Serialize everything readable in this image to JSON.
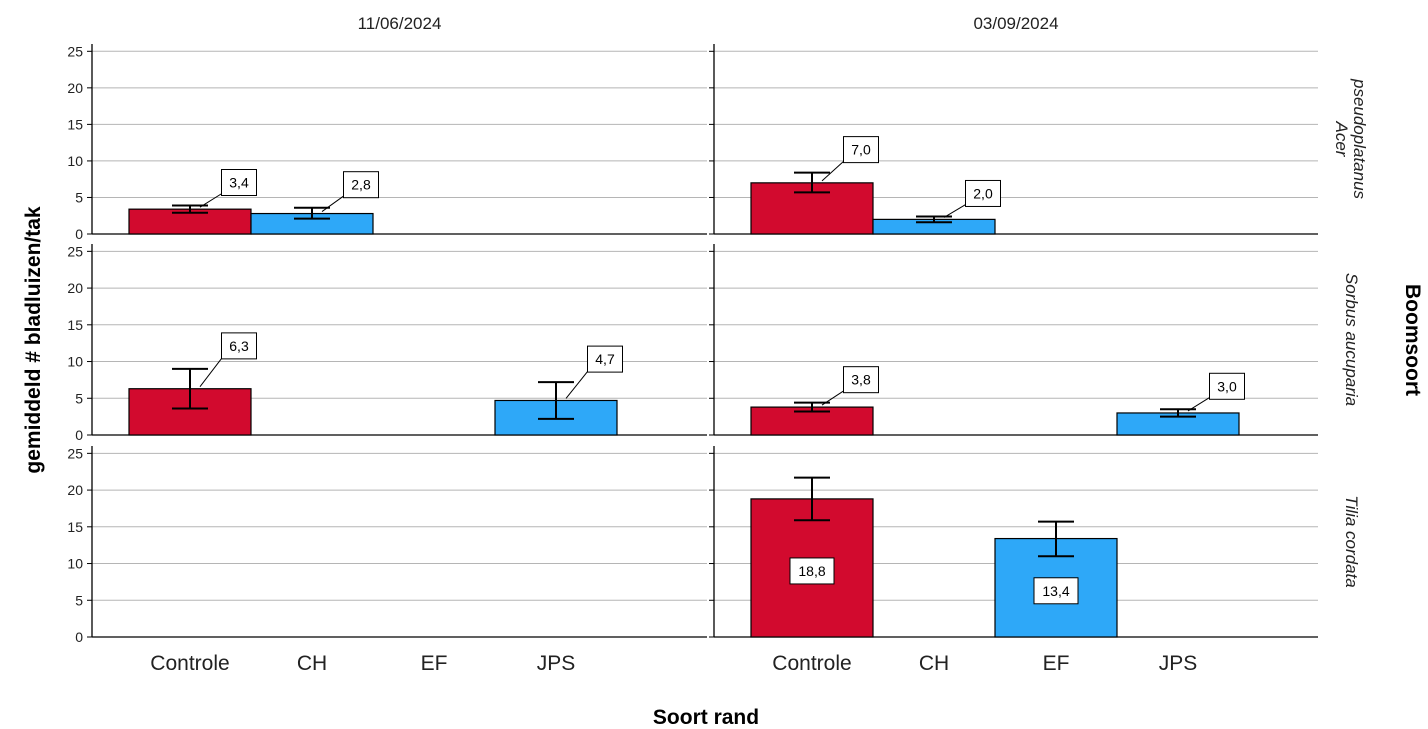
{
  "chart_data": {
    "type": "bar",
    "categories": [
      "Controle",
      "CH",
      "EF",
      "JPS"
    ],
    "columns": [
      "11/06/2024",
      "03/09/2024"
    ],
    "rows": [
      "Acer pseudoplatanus",
      "Sorbus aucuparia",
      "Tilia cordata"
    ],
    "ylabel": "gemiddeld # bladluizen/tak",
    "xlabel": "Soort rand",
    "row_axis_label": "Boomsoort",
    "ylim": [
      0,
      26
    ],
    "yticks": [
      "0",
      "5",
      "10",
      "15",
      "20",
      "25"
    ],
    "grid": true,
    "colors": {
      "Controle": "#d20a2e",
      "other": "#2ea8f8"
    },
    "panels": [
      {
        "col": 0,
        "row": 0,
        "bars": [
          {
            "category": "Controle",
            "value": 3.4,
            "label": "3,4",
            "err_low": 2.9,
            "err_high": 3.9
          },
          {
            "category": "CH",
            "value": 2.8,
            "label": "2,8",
            "err_low": 2.1,
            "err_high": 3.6
          }
        ]
      },
      {
        "col": 1,
        "row": 0,
        "bars": [
          {
            "category": "Controle",
            "value": 7.0,
            "label": "7,0",
            "err_low": 5.7,
            "err_high": 8.4
          },
          {
            "category": "CH",
            "value": 2.0,
            "label": "2,0",
            "err_low": 1.6,
            "err_high": 2.4
          }
        ]
      },
      {
        "col": 0,
        "row": 1,
        "bars": [
          {
            "category": "Controle",
            "value": 6.3,
            "label": "6,3",
            "err_low": 3.6,
            "err_high": 9.0
          },
          {
            "category": "JPS",
            "value": 4.7,
            "label": "4,7",
            "err_low": 2.2,
            "err_high": 7.2
          }
        ]
      },
      {
        "col": 1,
        "row": 1,
        "bars": [
          {
            "category": "Controle",
            "value": 3.8,
            "label": "3,8",
            "err_low": 3.2,
            "err_high": 4.4
          },
          {
            "category": "JPS",
            "value": 3.0,
            "label": "3,0",
            "err_low": 2.5,
            "err_high": 3.5
          }
        ]
      },
      {
        "col": 0,
        "row": 2,
        "bars": []
      },
      {
        "col": 1,
        "row": 2,
        "bars": [
          {
            "category": "Controle",
            "value": 18.8,
            "label": "18,8",
            "err_low": 15.9,
            "err_high": 21.7,
            "label_inside": true
          },
          {
            "category": "EF",
            "value": 13.4,
            "label": "13,4",
            "err_low": 11.0,
            "err_high": 15.7,
            "label_inside": true
          }
        ]
      }
    ]
  }
}
